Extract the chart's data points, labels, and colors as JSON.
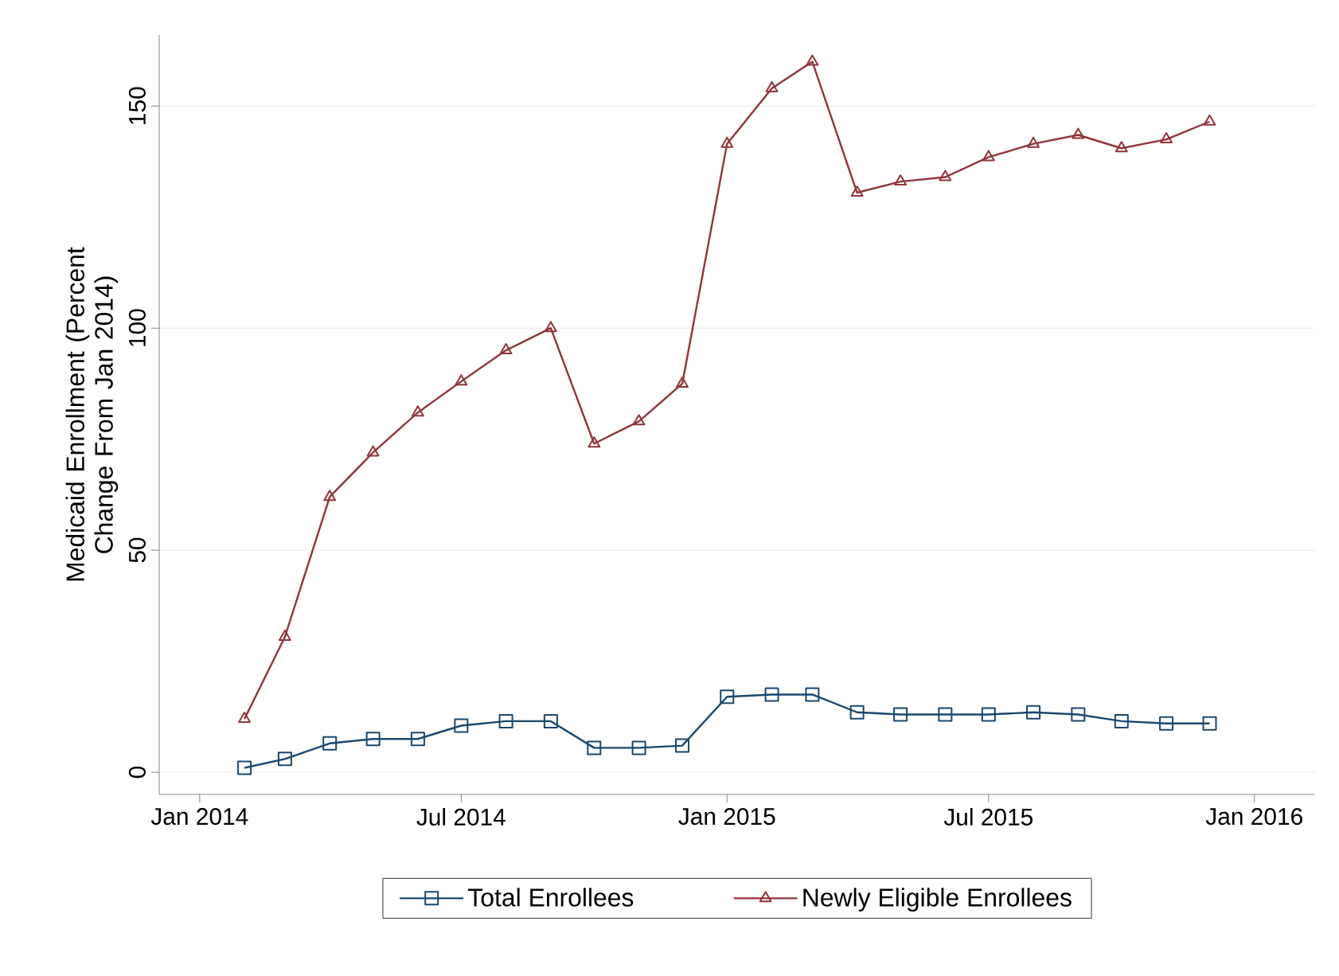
{
  "chart_data": {
    "type": "line",
    "ylabel": "Medicaid Enrollment (Percent Change From Jan 2014)",
    "x": [
      "2014-02",
      "2014-03",
      "2014-04",
      "2014-05",
      "2014-06",
      "2014-07",
      "2014-08",
      "2014-09",
      "2014-10",
      "2014-11",
      "2014-12",
      "2015-01",
      "2015-02",
      "2015-03",
      "2015-04",
      "2015-05",
      "2015-06",
      "2015-07",
      "2015-08",
      "2015-09",
      "2015-10",
      "2015-11",
      "2015-12"
    ],
    "series": [
      {
        "name": "Total Enrollees",
        "color": "#1a476f",
        "marker": "square",
        "values": [
          1,
          3,
          6.5,
          7.5,
          7.5,
          10.5,
          11.5,
          11.5,
          5.5,
          5.5,
          6,
          17,
          17.5,
          17.5,
          13.5,
          13,
          13,
          13,
          13.5,
          13,
          11.5,
          11,
          11
        ]
      },
      {
        "name": "Newly Eligible Enrollees",
        "color": "#90353b",
        "marker": "triangle",
        "values": [
          12,
          30.5,
          62,
          72,
          81,
          88,
          95,
          100,
          74,
          79,
          87.5,
          141.5,
          154,
          160,
          130.5,
          133,
          134,
          138.5,
          141.5,
          143.5,
          140.5,
          142.5,
          146.5
        ]
      }
    ],
    "xlim": [
      "2013-12-04",
      "2016-02-12"
    ],
    "xticks": [
      {
        "value": "2014-01",
        "label": "Jan 2014"
      },
      {
        "value": "2014-07",
        "label": "Jul 2014"
      },
      {
        "value": "2015-01",
        "label": "Jan 2015"
      },
      {
        "value": "2015-07",
        "label": "Jul 2015"
      },
      {
        "value": "2016-01",
        "label": "Jan 2016"
      }
    ],
    "ylim": [
      -5,
      166
    ],
    "yticks": [
      0,
      50,
      100,
      150
    ],
    "grid": "y",
    "legend": "bottom",
    "line_style": "solid"
  }
}
